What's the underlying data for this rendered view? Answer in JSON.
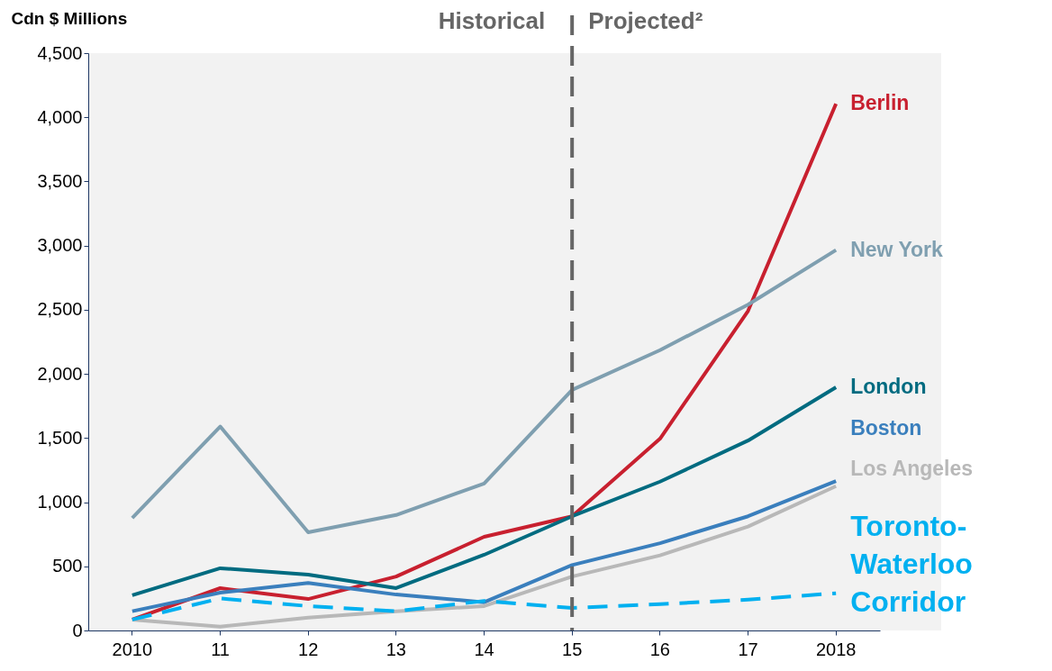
{
  "chart_data": {
    "type": "line",
    "ylabel": "Cdn $ Millions",
    "categories": [
      "2010",
      "11",
      "12",
      "13",
      "14",
      "15",
      "16",
      "17",
      "2018"
    ],
    "series": [
      {
        "name": "Berlin",
        "color": "#c8202f",
        "values": [
          85,
          330,
          245,
          420,
          730,
          890,
          1495,
          2490,
          4105
        ]
      },
      {
        "name": "New York",
        "color": "#7f9fb0",
        "values": [
          877,
          1590,
          765,
          900,
          1145,
          1875,
          2185,
          2540,
          2965
        ]
      },
      {
        "name": "London",
        "color": "#006b80",
        "values": [
          275,
          485,
          435,
          330,
          590,
          890,
          1160,
          1480,
          1895
        ]
      },
      {
        "name": "Boston",
        "color": "#3a7fbd",
        "values": [
          150,
          295,
          370,
          280,
          220,
          510,
          680,
          890,
          1165
        ]
      },
      {
        "name": "Los Angeles",
        "color": "#b8b8b8",
        "values": [
          85,
          30,
          100,
          150,
          190,
          420,
          585,
          810,
          1125
        ]
      },
      {
        "name": "Toronto-Waterloo Corridor",
        "color": "#00b0f0",
        "line_style": "dashed",
        "values": [
          85,
          250,
          190,
          150,
          230,
          175,
          205,
          240,
          290
        ]
      }
    ],
    "ylim": [
      0,
      4500
    ],
    "yticks": [
      0,
      500,
      {
        "value": 1000,
        "label": "1,000"
      },
      {
        "value": 1500,
        "label": "1,500"
      },
      {
        "value": 2000,
        "label": "2,000"
      },
      {
        "value": 2500,
        "label": "2,500"
      },
      {
        "value": 3000,
        "label": "3,000"
      },
      {
        "value": 3500,
        "label": "3,500"
      },
      {
        "value": 4000,
        "label": "4,000"
      },
      {
        "value": 4500,
        "label": "4,500"
      }
    ],
    "ref_lines": [
      {
        "axis": "x",
        "value": "15",
        "color": "#666666",
        "line_style": "dashed"
      }
    ],
    "annotations": [
      "Historical",
      "Projected²"
    ],
    "grid": false,
    "legend": false,
    "marker": "none"
  }
}
